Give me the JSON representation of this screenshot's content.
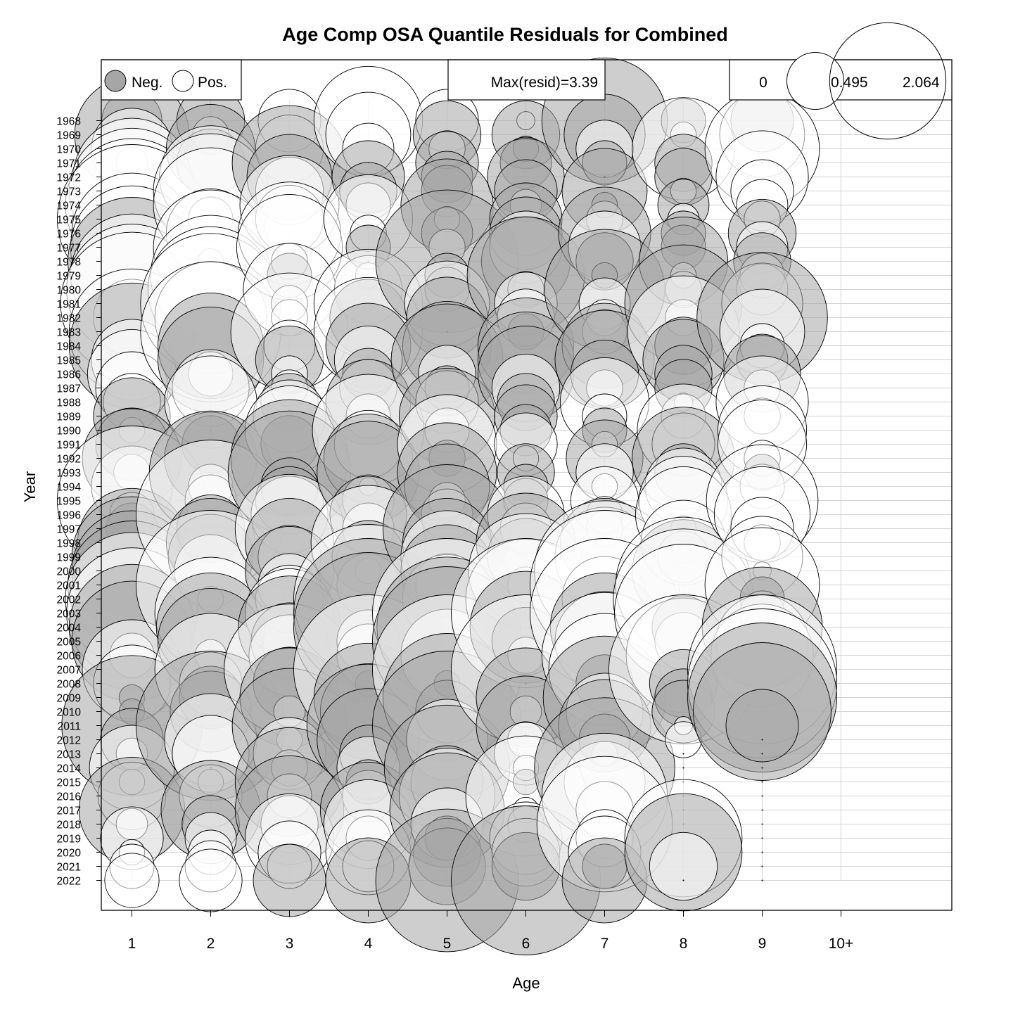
{
  "chart_data": {
    "type": "bubble",
    "title": "Age Comp OSA Quantile Residuals for Combined",
    "xlabel": "Age",
    "ylabel": "Year",
    "grid": true,
    "ages": [
      "1",
      "2",
      "3",
      "4",
      "5",
      "6",
      "7",
      "8",
      "9",
      "10+"
    ],
    "years": [
      1968,
      1969,
      1970,
      1971,
      1972,
      1973,
      1974,
      1975,
      1976,
      1977,
      1978,
      1979,
      1980,
      1981,
      1982,
      1983,
      1984,
      1985,
      1986,
      1987,
      1988,
      1989,
      1990,
      1991,
      1992,
      1993,
      1994,
      1995,
      1996,
      1997,
      1998,
      1999,
      2000,
      2001,
      2002,
      2003,
      2004,
      2005,
      2006,
      2007,
      2008,
      2009,
      2010,
      2011,
      2012,
      2013,
      2014,
      2015,
      2016,
      2017,
      2018,
      2019,
      2020,
      2021,
      2022
    ],
    "legend": {
      "neg_label": "Neg.",
      "pos_label": "Pos.",
      "max_label": "Max(resid)=3.39",
      "size_labels": [
        "0",
        "0.495",
        "2.064"
      ],
      "size_values": [
        0,
        0.495,
        2.064
      ],
      "neg_color": "#a6a6a6",
      "pos_color": "#ffffff"
    },
    "max_resid": 3.39,
    "residuals": {
      "1": [
        -0.55,
        -2.0,
        1.0,
        0.15,
        2.1,
        2.4,
        2.7,
        3.39,
        2.2,
        2.3,
        -2.5,
        2.3,
        2.6,
        3.1,
        0.9,
        2.4,
        -2.4,
        1.0,
        1.2,
        0.8,
        0.5,
        -0.9,
        0.1,
        -0.8,
        -1.5,
        0.2,
        1.0,
        3.39,
        0.3,
        -0.4,
        -1.8,
        -2.2,
        -2.2,
        -2.5,
        2.7,
        2.6,
        -2.4,
        -2.2,
        0.3,
        1.5,
        0.9,
        -0.1,
        -0.1,
        -3.0,
        -0.6,
        0.15,
        1.1,
        0.1,
        0.7,
        -1.7,
        0.15,
        0.6,
        0.1,
        0.3,
        0.45
      ],
      "2": [
        -0.7,
        0.2,
        -1.2,
        -0.7,
        1.6,
        2.0,
        2.0,
        0.3,
        1.2,
        2.0,
        0.1,
        2.2,
        2.4,
        3.0,
        1.9,
        3.0,
        -1.7,
        -1.7,
        0.3,
        0.9,
        1.3,
        0.0,
        0.0,
        -0.5,
        -1.3,
        -2.3,
        0.3,
        0.4,
        3.39,
        -0.7,
        -1.2,
        -1.1,
        0.8,
        3.39,
        0.1,
        1.9,
        -1.8,
        -1.7,
        0.15,
        1.9,
        0.6,
        -0.6,
        -1.0,
        -3.39,
        1.3,
        0.9,
        0.0,
        0.1,
        0.6,
        -1.5,
        -0.5,
        0.4,
        0.3,
        0.4,
        0.6
      ],
      "3": [
        0.6,
        0.0,
        0.7,
        -2.0,
        -1.1,
        0.7,
        1.5,
        0.7,
        1.6,
        1.7,
        0.2,
        -0.3,
        1.3,
        0.2,
        0.2,
        2.1,
        0.4,
        -0.7,
        0.2,
        0.2,
        -0.5,
        0.8,
        1.2,
        -0.5,
        -2.1,
        -2.3,
        -0.5,
        -0.7,
        0.9,
        1.8,
        -1.2,
        0.6,
        -1.2,
        0.6,
        0.7,
        1.2,
        -1.6,
        -0.9,
        1.0,
        2.6,
        -0.8,
        -1.5,
        0.15,
        -2.0,
        0.1,
        0.8,
        0.2,
        -1.8,
        0.3,
        -1.8,
        0.5,
        1.2,
        0.6,
        0.3,
        -0.8
      ],
      "4": [
        1.8,
        1.1,
        0.4,
        0.0,
        -0.8,
        -0.5,
        0.3,
        1.2,
        0.2,
        -0.3,
        0.0,
        0.1,
        0.7,
        1.8,
        -0.9,
        1.8,
        -1.1,
        0.7,
        -0.4,
        0.5,
        -1.1,
        0.3,
        1.9,
        0.7,
        -1.2,
        -1.6,
        0.05,
        0.4,
        -0.9,
        0.4,
        2.0,
        -0.8,
        0.1,
        0.6,
        3.39,
        -3.39,
        -3.39,
        0.6,
        0.6,
        3.39,
        -0.1,
        -1.8,
        -1.4,
        -2.3,
        -1.6,
        -0.5,
        0.6,
        -0.3,
        0.4,
        -1.4,
        1.2,
        0.3,
        1.1,
        0.4,
        -1.1
      ],
      "5": [
        0.6,
        -0.7,
        0.2,
        -0.6,
        -0.4,
        -0.4,
        -1.3,
        0.1,
        -0.4,
        0.2,
        -3.1,
        -0.3,
        -0.3,
        1.1,
        -1.0,
        0.0,
        -1.2,
        -1.9,
        0.5,
        -0.3,
        0.6,
        -1.4,
        0.3,
        1.5,
        -0.2,
        -1.5,
        -1.1,
        0.2,
        0.4,
        -2.5,
        -1.2,
        1.3,
        -1.3,
        0.6,
        1.2,
        3.39,
        -3.0,
        -3.39,
        1.3,
        3.39,
        -0.1,
        -2.5,
        -0.6,
        -3.39,
        1.0,
        0.0,
        -2.4,
        -0.8,
        1.4,
        -2.0,
        0.8,
        -0.3,
        -0.7,
        -0.9,
        -3.1
      ],
      "6": [
        0.05,
        -0.7,
        -0.1,
        -0.4,
        -0.9,
        -0.6,
        0.15,
        -0.8,
        -0.8,
        0.8,
        -1.2,
        -2.1,
        -0.2,
        0.6,
        0.5,
        -0.2,
        -1.4,
        -1.4,
        -1.4,
        0.7,
        -0.5,
        -0.6,
        -0.4,
        0.6,
        0.1,
        -0.5,
        -0.3,
        -0.3,
        0.9,
        0.4,
        -1.5,
        -0.9,
        2.0,
        0.2,
        2.2,
        3.39,
        -1.9,
        -0.7,
        0.2,
        3.39,
        0.0,
        -1.5,
        0.15,
        -1.5,
        0.2,
        0.6,
        0.1,
        -0.1,
        2.2,
        0.1,
        0.2,
        0.8,
        0.7,
        -0.7,
        -3.39
      ],
      "7": [
        -2.4,
        -1.0,
        0.5,
        -0.3,
        0.0,
        -1.1,
        -0.1,
        0.2,
        -1.3,
        0.8,
        -0.5,
        -0.1,
        -2.2,
        0.4,
        0.2,
        0.3,
        -1.1,
        -1.5,
        -0.7,
        0.2,
        1.2,
        0.3,
        -0.3,
        0.1,
        -0.9,
        0.5,
        0.1,
        0.7,
        0.2,
        0.2,
        -1.2,
        1.5,
        3.0,
        3.39,
        1.1,
        3.39,
        -1.8,
        1.5,
        2.4,
        1.9,
        -0.5,
        -2.3,
        0.9,
        -1.3,
        -0.4,
        0.1,
        -3.0,
        1.0,
        2.4,
        0.5,
        2.8,
        0.5,
        0.8,
        -0.3,
        -1.1
      ],
      "8": [
        -0.3,
        0.1,
        1.6,
        -0.5,
        -0.5,
        0.1,
        -0.4,
        0.15,
        -0.3,
        -0.3,
        -1.2,
        0.1,
        0.2,
        -2.1,
        0.2,
        1.9,
        -0.5,
        -1.0,
        -0.5,
        -0.5,
        0.05,
        0.3,
        1.3,
        0.6,
        -1.6,
        -0.5,
        0.9,
        1.2,
        1.4,
        0.1,
        1.1,
        0.4,
        -1.6,
        2.8,
        3.0,
        2.9,
        -0.6,
        0.5,
        2.0,
        3.39,
        -0.7,
        -0.5,
        -0.6,
        0.05,
        0.2,
        0.0,
        0.0,
        0.0,
        0.0,
        0.0,
        0.0,
        2.1,
        -2.1,
        0.7,
        0.0
      ],
      "9": [
        -0.6,
        1.1,
        2.0,
        0.0,
        1.3,
        0.6,
        0.4,
        0.2,
        -0.7,
        0.4,
        -0.5,
        0.3,
        0.4,
        1.0,
        -2.6,
        1.1,
        0.3,
        -0.4,
        -0.9,
        0.2,
        1.3,
        0.2,
        1.2,
        1.2,
        0.2,
        -0.2,
        0.3,
        1.9,
        1.4,
        0.6,
        0.2,
        1.0,
        0.05,
        2.0,
        -0.3,
        0.3,
        -2.2,
        1.3,
        1.6,
        3.39,
        3.39,
        -3.39,
        -2.9,
        -0.8,
        0.0,
        0.0,
        0.0,
        0.0,
        0.0,
        0.0,
        0.0,
        0.0,
        0.0,
        0.0,
        0.0
      ],
      "10+": []
    }
  }
}
